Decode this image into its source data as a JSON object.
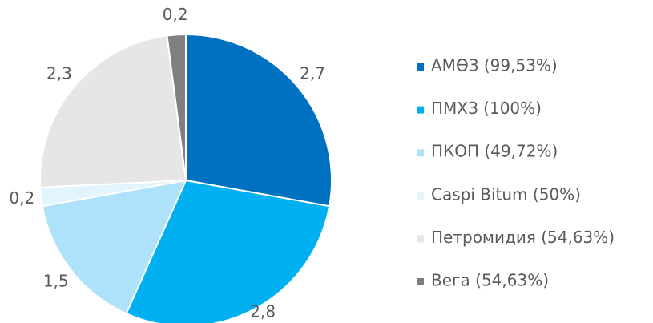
{
  "chart_data": {
    "type": "pie",
    "categories": [
      "АМӨЗ (99,53%)",
      "ПМХЗ (100%)",
      "ПКОП (49,72%)",
      "Caspi Bitum (50%)",
      "Петромидия (54,63%)",
      "Вега (54,63%)"
    ],
    "values": [
      2.7,
      2.8,
      1.5,
      0.2,
      2.3,
      0.2
    ],
    "value_labels": [
      "2,7",
      "2,8",
      "1,5",
      "0,2",
      "2,3",
      "0,2"
    ],
    "colors": [
      "#0070c0",
      "#00b0f0",
      "#aee2fb",
      "#e2f4fd",
      "#e6e6e6",
      "#7f7f7f"
    ],
    "legend": "right"
  }
}
